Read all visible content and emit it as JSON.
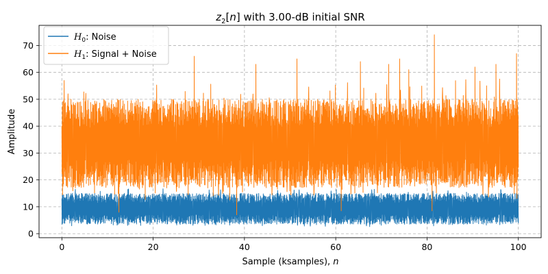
{
  "chart_data": {
    "type": "line",
    "title": {
      "math_var": "z",
      "subscript": "2",
      "bracket_open": "[",
      "index_var": "n",
      "bracket_close": "]",
      "rest": " with 3.00-dB initial SNR"
    },
    "xlabel": {
      "text": "Sample (ksamples), ",
      "math": "n"
    },
    "ylabel": "Amplitude",
    "xlim": [
      -5,
      105
    ],
    "ylim": [
      -1.5,
      77.5
    ],
    "xticks": [
      0,
      20,
      40,
      60,
      80,
      100
    ],
    "yticks": [
      0,
      10,
      20,
      30,
      40,
      50,
      60,
      70
    ],
    "grid": true,
    "legend_position": "top-left",
    "series": [
      {
        "name_math": "H",
        "name_sub": "0",
        "name_rest": ": Noise",
        "color": "#1f77b4",
        "x_range": [
          0,
          100
        ],
        "typical_min": 3.5,
        "typical_max": 15,
        "overall_min": 1.5,
        "overall_max": 20
      },
      {
        "name_math": "H",
        "name_sub": "1",
        "name_rest": ": Signal + Noise",
        "color": "#ff7f0e",
        "x_range": [
          0,
          100
        ],
        "typical_min": 17,
        "typical_max": 50,
        "overall_min": 7,
        "overall_max": 74,
        "peaks": [
          {
            "x": 81.6,
            "y": 74
          },
          {
            "x": 29.0,
            "y": 66
          },
          {
            "x": 51.5,
            "y": 65
          },
          {
            "x": 74.0,
            "y": 65
          },
          {
            "x": 99.6,
            "y": 67
          },
          {
            "x": 65.4,
            "y": 64
          },
          {
            "x": 71.6,
            "y": 63
          },
          {
            "x": 42.5,
            "y": 63
          },
          {
            "x": 95.1,
            "y": 63
          },
          {
            "x": 90.5,
            "y": 62
          },
          {
            "x": 76.0,
            "y": 61
          }
        ],
        "dips": [
          {
            "x": 38.3,
            "y": 7
          },
          {
            "x": 12.5,
            "y": 8
          },
          {
            "x": 61.2,
            "y": 8.5
          },
          {
            "x": 81.1,
            "y": 8.5
          }
        ]
      }
    ]
  }
}
